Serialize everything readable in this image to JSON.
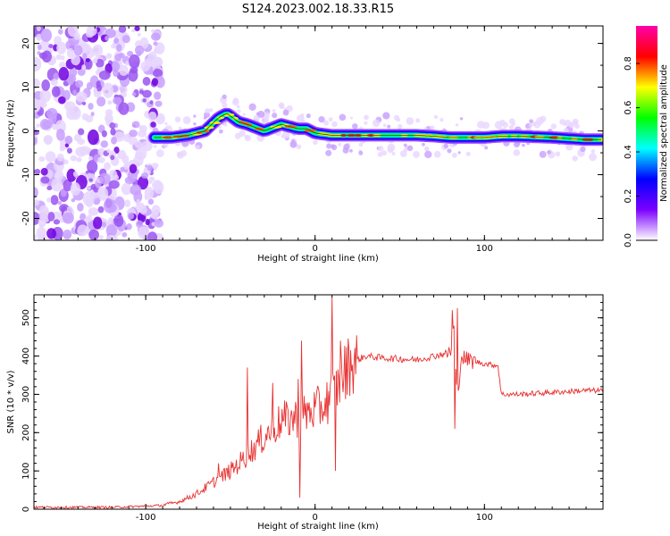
{
  "title": "S124.2023.002.18.33.R15",
  "chart_data": [
    {
      "type": "heatmap",
      "xlabel": "Height of straight line (km)",
      "ylabel": "Frequency (Hz)",
      "xlim": [
        -166,
        170
      ],
      "ylim": [
        -25,
        24
      ],
      "xticks": [
        -100,
        0,
        100
      ],
      "yticks": [
        -20,
        -10,
        0,
        10,
        20
      ],
      "colorbar": {
        "label": "Normalized spectral amplitude",
        "range": [
          0.0,
          0.97
        ],
        "ticks": [
          0.0,
          0.2,
          0.4,
          0.6,
          0.8
        ],
        "colors": [
          "#ffffff",
          "#7b00ff",
          "#0000ff",
          "#00ffff",
          "#00ff00",
          "#ffff00",
          "#ff0000",
          "#ff00aa"
        ]
      },
      "ridge": {
        "x": [
          -95,
          -85,
          -75,
          -65,
          -57,
          -52,
          -45,
          -40,
          -30,
          -20,
          -15,
          -10,
          -5,
          0,
          10,
          20,
          40,
          60,
          70,
          80,
          90,
          100,
          110,
          120,
          140,
          160,
          170
        ],
        "y": [
          -1.5,
          -1.5,
          -1,
          0,
          3,
          4,
          2,
          1.5,
          0,
          1.5,
          1,
          0.5,
          0.5,
          -0.5,
          -1,
          -1,
          -1,
          -1,
          -1.2,
          -1.5,
          -1.5,
          -1.5,
          -1.2,
          -1.2,
          -1.5,
          -2,
          -2
        ]
      },
      "noise_region_x": [
        -166,
        -95
      ],
      "grid": false
    },
    {
      "type": "line",
      "xlabel": "Height of straight line (km)",
      "ylabel": "SNR (10 * v/v)",
      "xlim": [
        -166,
        170
      ],
      "ylim": [
        0,
        560
      ],
      "xticks": [
        -100,
        0,
        100
      ],
      "yticks": [
        0,
        100,
        200,
        300,
        400,
        500
      ],
      "color": "#e83030",
      "series": [
        {
          "x": [
            -166,
            -120,
            -100,
            -90,
            -80,
            -70,
            -60,
            -50,
            -40,
            -30,
            -20,
            -10,
            0,
            5,
            10,
            15,
            20,
            30,
            40,
            60,
            70,
            75,
            80,
            82,
            84,
            86,
            90,
            100,
            108,
            110,
            120,
            140,
            160,
            170
          ],
          "values": [
            5,
            5,
            8,
            10,
            20,
            40,
            70,
            100,
            140,
            190,
            230,
            240,
            260,
            270,
            300,
            330,
            380,
            400,
            395,
            390,
            400,
            405,
            410,
            480,
            260,
            400,
            390,
            380,
            375,
            300,
            300,
            305,
            310,
            310
          ]
        }
      ],
      "spikes": [
        {
          "x": -57,
          "y": 120
        },
        {
          "x": -40,
          "y": 370
        },
        {
          "x": -25,
          "y": 330
        },
        {
          "x": -10,
          "y": 340
        },
        {
          "x": -9,
          "y": 30
        },
        {
          "x": -8,
          "y": 440
        },
        {
          "x": 10,
          "y": 555
        },
        {
          "x": 12,
          "y": 100
        },
        {
          "x": 15,
          "y": 440
        },
        {
          "x": 81,
          "y": 520
        },
        {
          "x": 82.5,
          "y": 210
        },
        {
          "x": 84,
          "y": 525
        }
      ],
      "grid": false
    }
  ]
}
